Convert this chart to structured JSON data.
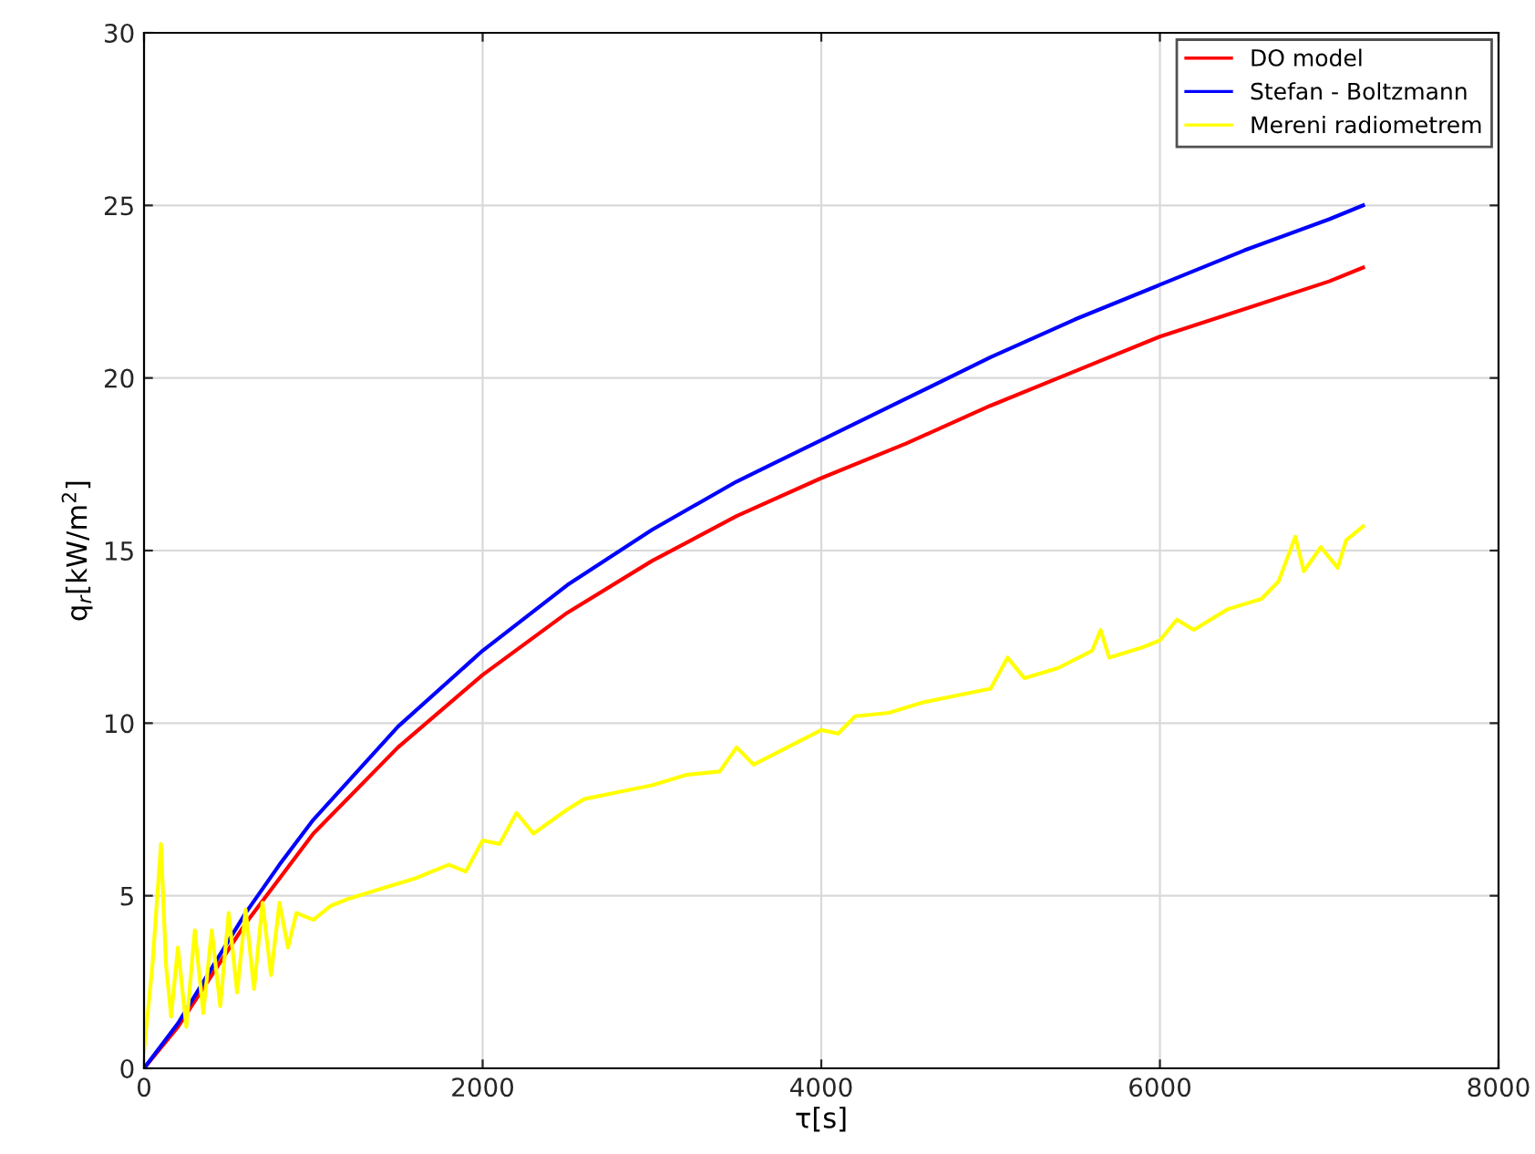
{
  "chart_data": {
    "type": "line",
    "xlabel": "τ[s]",
    "ylabel": "q$_{r}$[kW/m$^{2}$]",
    "xlim": [
      0,
      8000
    ],
    "xticks": [
      0,
      2000,
      4000,
      6000,
      8000
    ],
    "ylim": [
      0,
      30
    ],
    "yticks": [
      0,
      5,
      10,
      15,
      20,
      25,
      30
    ],
    "grid": true,
    "legend": "top right",
    "line_style": "solid",
    "marker": "none",
    "series": [
      {
        "name": "DO model",
        "color": "#ff0000",
        "x": [
          0,
          200,
          400,
          600,
          800,
          1000,
          1500,
          2000,
          2500,
          3000,
          3500,
          4000,
          4500,
          5000,
          5500,
          6000,
          6500,
          7000,
          7200
        ],
        "values": [
          0,
          1.2,
          2.7,
          4.2,
          5.5,
          6.8,
          9.3,
          11.4,
          13.2,
          14.7,
          16.0,
          17.1,
          18.1,
          19.2,
          20.2,
          21.2,
          22.0,
          22.8,
          23.2
        ]
      },
      {
        "name": "Stefan - Boltzmann",
        "color": "#0000ff",
        "x": [
          0,
          200,
          400,
          600,
          800,
          1000,
          1500,
          2000,
          2500,
          3000,
          3500,
          4000,
          4500,
          5000,
          5500,
          6000,
          6500,
          7000,
          7200
        ],
        "values": [
          0,
          1.3,
          2.9,
          4.5,
          5.9,
          7.2,
          9.9,
          12.1,
          14.0,
          15.6,
          17.0,
          18.2,
          19.4,
          20.6,
          21.7,
          22.7,
          23.7,
          24.6,
          25.0
        ]
      },
      {
        "name": "Mereni radiometrem",
        "color": "#ffff00",
        "x": [
          0,
          50,
          100,
          130,
          160,
          200,
          250,
          300,
          350,
          400,
          450,
          500,
          550,
          600,
          650,
          700,
          750,
          800,
          850,
          900,
          1000,
          1100,
          1200,
          1400,
          1600,
          1800,
          1900,
          2000,
          2100,
          2200,
          2300,
          2500,
          2600,
          2800,
          3000,
          3200,
          3400,
          3500,
          3600,
          3800,
          4000,
          4100,
          4200,
          4400,
          4600,
          4800,
          5000,
          5100,
          5200,
          5400,
          5600,
          5650,
          5700,
          5900,
          6000,
          6100,
          6200,
          6400,
          6600,
          6700,
          6800,
          6850,
          6950,
          7050,
          7100,
          7200
        ],
        "values": [
          0.5,
          3,
          6.5,
          3,
          1.5,
          3.5,
          1.2,
          4,
          1.6,
          4,
          1.8,
          4.5,
          2.2,
          4.6,
          2.3,
          4.8,
          2.7,
          4.8,
          3.5,
          4.5,
          4.3,
          4.7,
          4.9,
          5.2,
          5.5,
          5.9,
          5.7,
          6.6,
          6.5,
          7.4,
          6.8,
          7.5,
          7.8,
          8.0,
          8.2,
          8.5,
          8.6,
          9.3,
          8.8,
          9.3,
          9.8,
          9.7,
          10.2,
          10.3,
          10.6,
          10.8,
          11.0,
          11.9,
          11.3,
          11.6,
          12.1,
          12.7,
          11.9,
          12.2,
          12.4,
          13.0,
          12.7,
          13.3,
          13.6,
          14.1,
          15.4,
          14.4,
          15.1,
          14.5,
          15.3,
          15.7
        ]
      }
    ]
  }
}
